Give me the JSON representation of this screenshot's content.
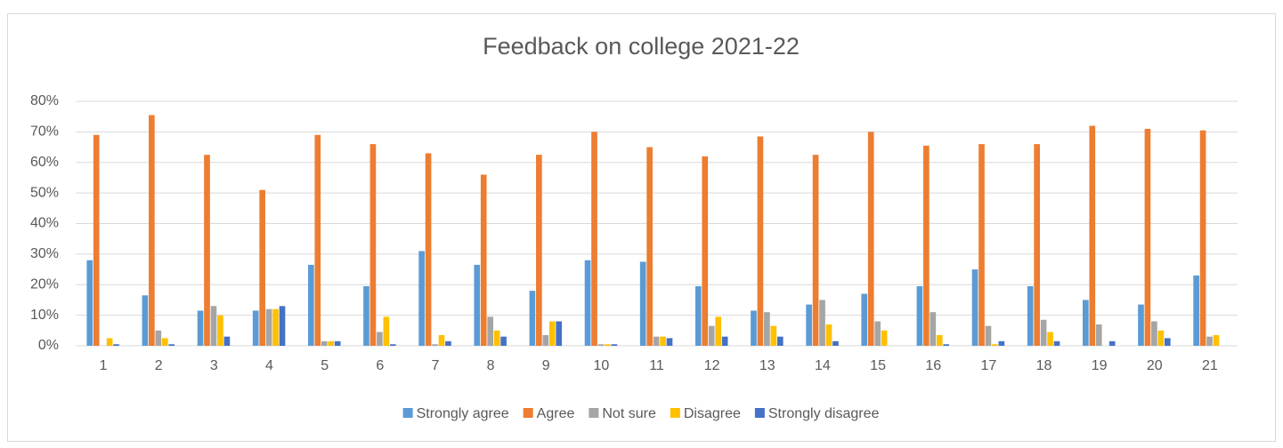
{
  "chart_data": {
    "type": "bar",
    "title": "Feedback on college 2021-22",
    "categories": [
      "1",
      "2",
      "3",
      "4",
      "5",
      "6",
      "7",
      "8",
      "9",
      "10",
      "11",
      "12",
      "13",
      "14",
      "15",
      "16",
      "17",
      "18",
      "19",
      "20",
      "21"
    ],
    "series": [
      {
        "name": "Strongly agree",
        "color": "#5b9bd5",
        "values": [
          28,
          16.5,
          11.5,
          11.5,
          26.5,
          19.5,
          31,
          26.5,
          18,
          28,
          27.5,
          19.5,
          11.5,
          13.5,
          17,
          19.5,
          25,
          19.5,
          15,
          13.5,
          23
        ]
      },
      {
        "name": "Agree",
        "color": "#ed7d31",
        "values": [
          69,
          75.5,
          62.5,
          51,
          69,
          66,
          63,
          56,
          62.5,
          70,
          65,
          62,
          68.5,
          62.5,
          70,
          65.5,
          66,
          66,
          72,
          71,
          70.5
        ]
      },
      {
        "name": "Not sure",
        "color": "#a5a5a5",
        "values": [
          0,
          5,
          13,
          12,
          1.5,
          4.5,
          0.5,
          9.5,
          3.5,
          0.5,
          3,
          6.5,
          11,
          15,
          8,
          11,
          6.5,
          8.5,
          7,
          8,
          3
        ]
      },
      {
        "name": "Disagree",
        "color": "#ffc000",
        "values": [
          2.5,
          2.5,
          10,
          12,
          1.5,
          9.5,
          3.5,
          5,
          8,
          0.5,
          3,
          9.5,
          6.5,
          7,
          5,
          3.5,
          0.5,
          4.5,
          0,
          5,
          3.5
        ]
      },
      {
        "name": "Strongly disagree",
        "color": "#4472c4",
        "values": [
          0.5,
          0.5,
          3,
          13,
          1.5,
          0.5,
          1.5,
          3,
          8,
          0.5,
          2.5,
          3,
          3,
          1.5,
          0,
          0.5,
          1.5,
          1.5,
          1.5,
          2.5,
          0
        ]
      }
    ],
    "ylim": [
      0,
      80
    ],
    "yticks": [
      {
        "value": 0,
        "label": "0%"
      },
      {
        "value": 10,
        "label": "10%"
      },
      {
        "value": 20,
        "label": "20%"
      },
      {
        "value": 30,
        "label": "30%"
      },
      {
        "value": 40,
        "label": "40%"
      },
      {
        "value": 50,
        "label": "50%"
      },
      {
        "value": 60,
        "label": "60%"
      },
      {
        "value": 70,
        "label": "70%"
      },
      {
        "value": 80,
        "label": "80%"
      }
    ],
    "grid": true,
    "legend": "bottom"
  }
}
